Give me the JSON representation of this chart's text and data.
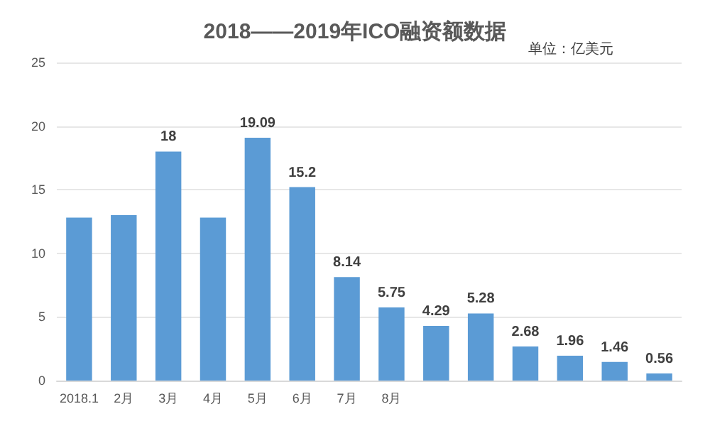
{
  "chart_data": {
    "type": "bar",
    "title": "2018——2019年ICO融资额数据",
    "annotations": [
      "单位：亿美元"
    ],
    "categories": [
      "2018.1",
      "2月",
      "3月",
      "4月",
      "5月",
      "6月",
      "7月",
      "8月",
      null,
      null,
      null,
      null,
      null,
      null
    ],
    "values": [
      12.8,
      13.0,
      18,
      12.8,
      19.09,
      15.2,
      8.14,
      5.75,
      4.29,
      5.28,
      2.68,
      1.96,
      1.46,
      0.56
    ],
    "value_labels": [
      null,
      null,
      "18",
      null,
      "19.09",
      "15.2",
      "8.14",
      "5.75",
      "4.29",
      "5.28",
      "2.68",
      "1.96",
      "1.46",
      "0.56"
    ],
    "color": "#5b9bd5",
    "ylim": [
      0,
      25
    ],
    "yticks": [
      0,
      5,
      10,
      15,
      20,
      25
    ],
    "grid": "y"
  }
}
